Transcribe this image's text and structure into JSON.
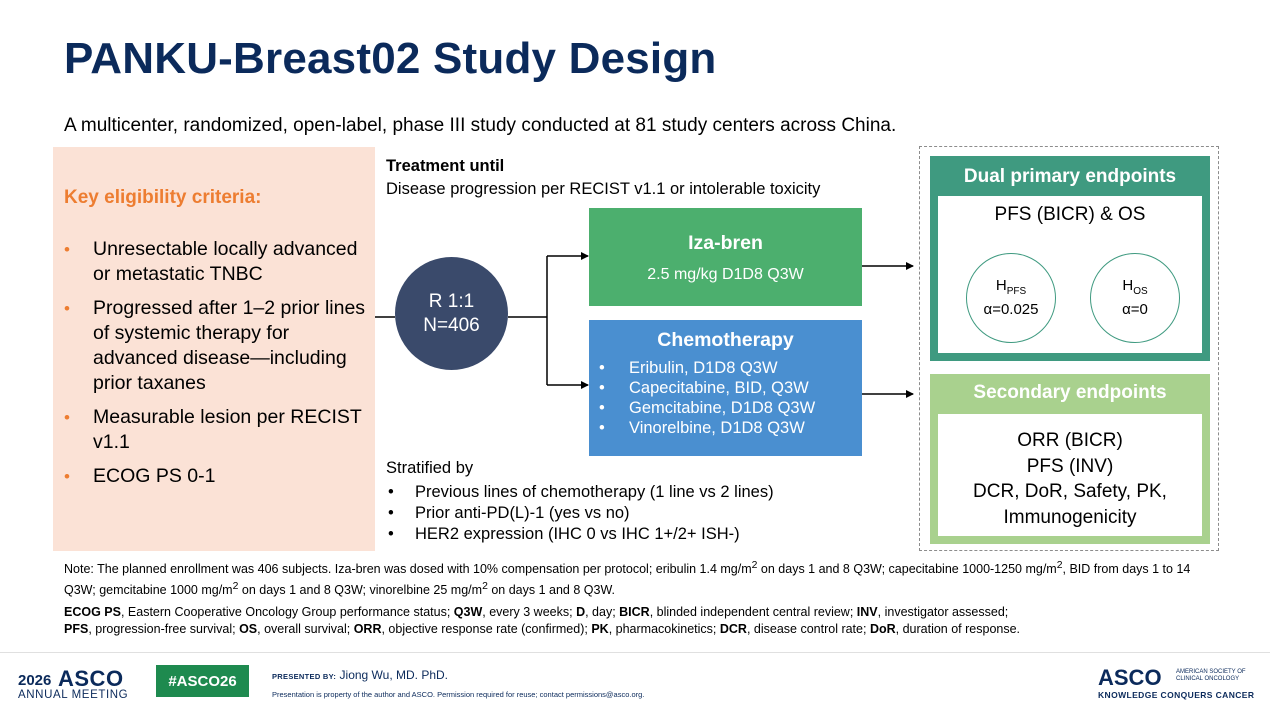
{
  "title": "PANKU-Breast02 Study Design",
  "subtitle": "A multicenter, randomized, open-label, phase III study conducted at 81 study centers across China.",
  "eligibility": {
    "heading": "Key eligibility criteria:",
    "items": [
      "Unresectable locally advanced or metastatic TNBC",
      "Progressed after 1–2 prior lines of systemic therapy for advanced disease—including prior taxanes",
      "Measurable lesion per RECIST v1.1",
      "ECOG PS 0-1"
    ],
    "bullet": "•"
  },
  "treatment_until": {
    "heading": "Treatment until",
    "text": "Disease progression per RECIST v1.1 or intolerable toxicity"
  },
  "randomization": {
    "ratio": "R 1:1",
    "n": "N=406"
  },
  "arms": {
    "iza": {
      "name": "Iza-bren",
      "dose": "2.5 mg/kg D1D8 Q3W"
    },
    "chemo": {
      "name": "Chemotherapy",
      "items": [
        "Eribulin, D1D8 Q3W",
        "Capecitabine, BID, Q3W",
        "Gemcitabine, D1D8 Q3W",
        "Vinorelbine, D1D8 Q3W"
      ]
    }
  },
  "stratified": {
    "heading": "Stratified by",
    "items": [
      "Previous lines of chemotherapy (1 line vs 2 lines)",
      "Prior anti-PD(L)-1 (yes vs no)",
      "HER2 expression (IHC 0 vs IHC 1+/2+ ISH-)"
    ]
  },
  "endpoints": {
    "dual": {
      "heading": "Dual primary endpoints",
      "main": "PFS (BICR) & OS",
      "h_pfs": {
        "label": "H",
        "sub": "PFS",
        "alpha": "α=0.025"
      },
      "h_os": {
        "label": "H",
        "sub": "OS",
        "alpha": "α=0"
      }
    },
    "secondary": {
      "heading": "Secondary endpoints",
      "lines": [
        "ORR (BICR)",
        "PFS (INV)",
        "DCR, DoR, Safety, PK,",
        "Immunogenicity"
      ]
    }
  },
  "note": {
    "p1": "Note: The planned enrollment was 406 subjects. Iza-bren was dosed with 10% compensation per protocol; eribulin 1.4 mg/m",
    "p2": " on days 1 and 8 Q3W; capecitabine 1000-1250 mg/m",
    "p3": ", BID from days 1 to 14 Q3W; gemcitabine 1000 mg/m",
    "p4": " on days 1 and 8 Q3W; vinorelbine 25 mg/m",
    "p5": " on days 1 and 8 Q3W.",
    "sup": "2"
  },
  "abbreviations": [
    {
      "abbr": "ECOG PS",
      "def": ", Eastern Cooperative Oncology Group performance status; "
    },
    {
      "abbr": "Q3W",
      "def": ", every 3 weeks; "
    },
    {
      "abbr": "D",
      "def": ", day; "
    },
    {
      "abbr": "BICR",
      "def": ", blinded independent central review; "
    },
    {
      "abbr": "INV",
      "def": ", investigator assessed;"
    },
    {
      "abbr": "PFS",
      "def": ", progression-free survival; "
    },
    {
      "abbr": "OS",
      "def": ", overall survival; "
    },
    {
      "abbr": "ORR",
      "def": ", objective response rate (confirmed); "
    },
    {
      "abbr": "PK",
      "def": ", pharmacokinetics; "
    },
    {
      "abbr": "DCR",
      "def": ", disease control rate; "
    },
    {
      "abbr": "DoR",
      "def": ", duration of response."
    }
  ],
  "footer": {
    "year": "2026",
    "asco": "ASCO",
    "meeting": "ANNUAL MEETING",
    "hashtag": "#ASCO26",
    "presented_label": "PRESENTED BY:",
    "presenter": "Jiong Wu, MD. PhD.",
    "property": "Presentation is property of the author and ASCO. Permission required for reuse; contact permissions@asco.org.",
    "asco_right": "ASCO",
    "society": "AMERICAN SOCIETY OF CLINICAL ONCOLOGY",
    "tagline": "KNOWLEDGE CONQUERS CANCER"
  },
  "colors": {
    "title": "#0b2a5b",
    "accent_orange": "#ed7d31",
    "iza_green": "#4caf6e",
    "chemo_blue": "#4a8fd0",
    "dual_teal": "#3f9a80",
    "secondary_green": "#a9d18e",
    "rand_navy": "#3a4a6b"
  }
}
